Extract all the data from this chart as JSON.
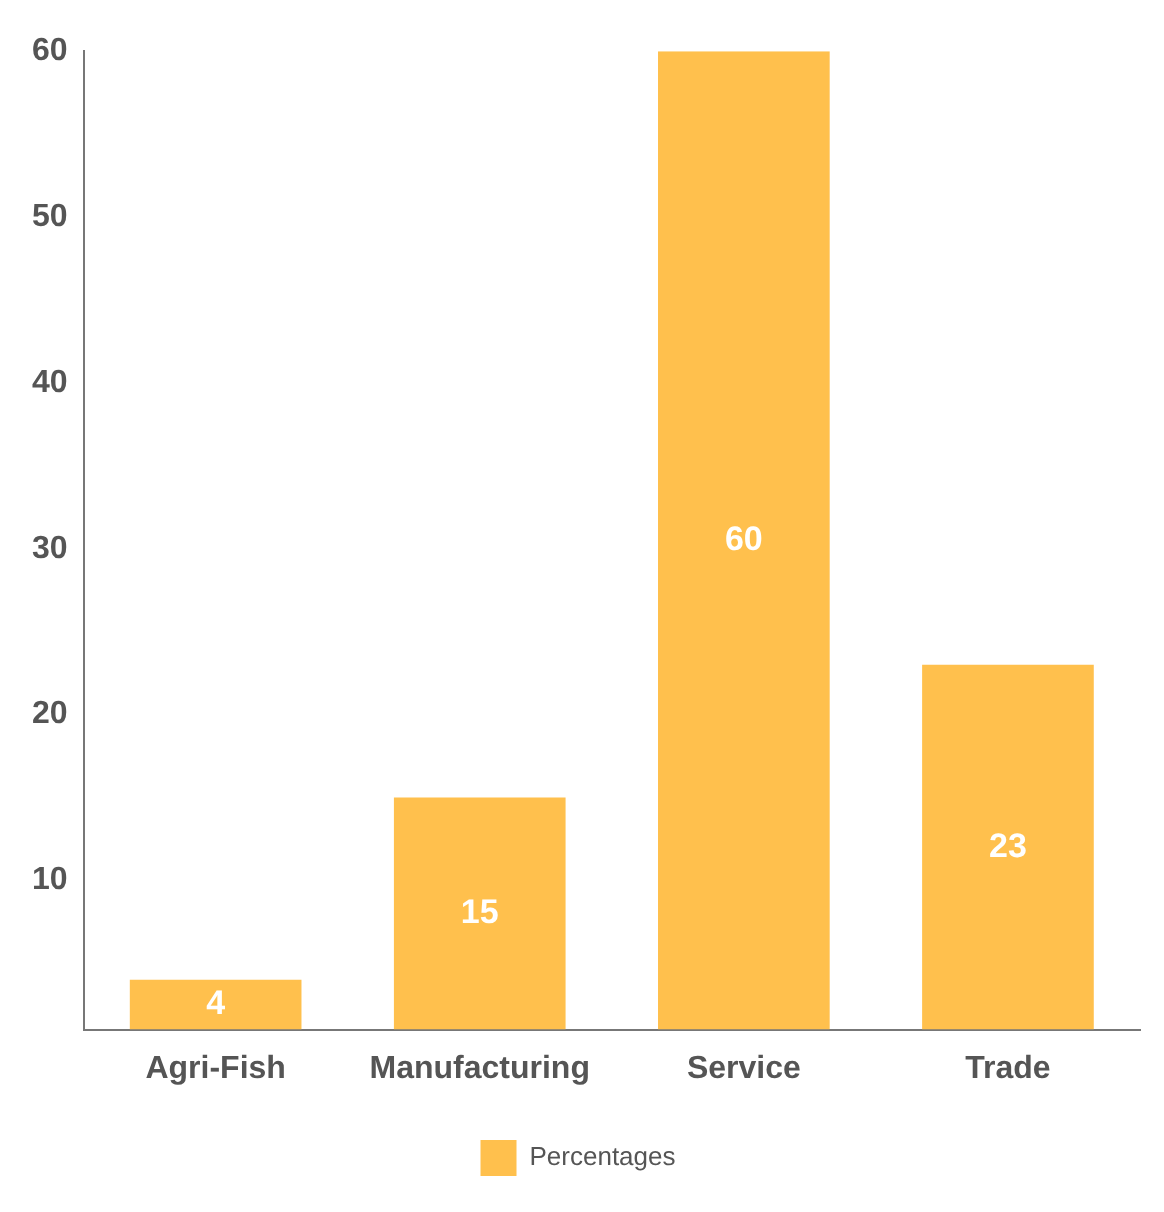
{
  "chart_data": {
    "type": "bar",
    "categories": [
      "Agri-Fish",
      "Manufacturing",
      "Service",
      "Trade"
    ],
    "series": [
      {
        "name": "Percentages",
        "color": "#ffc04d",
        "values": [
          4,
          15,
          60,
          23
        ]
      }
    ],
    "ylim": [
      1,
      60
    ],
    "yticks": [
      10,
      20,
      30,
      40,
      50,
      60
    ],
    "grid": false,
    "legend": "bottom",
    "data_labels": true
  }
}
